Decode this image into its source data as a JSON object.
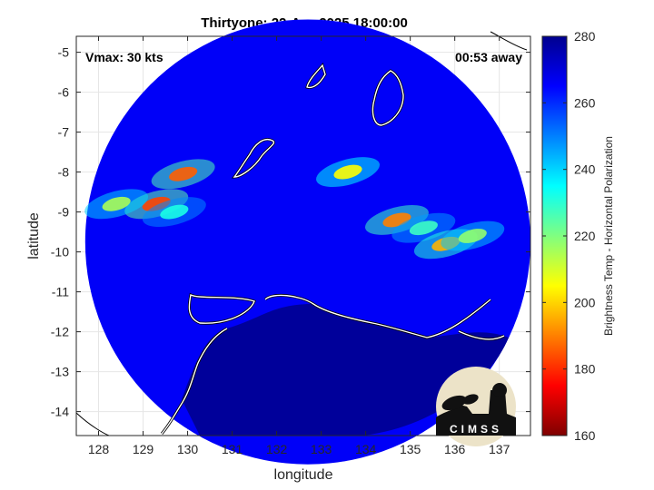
{
  "chart_data": {
    "type": "heatmap",
    "title": "Thirtyone: 22-Apr-2025 18:00:00",
    "xlabel": "longitude",
    "ylabel": "latitude",
    "xlim": [
      127.5,
      137.7
    ],
    "ylim": [
      -14.6,
      -4.6
    ],
    "x_ticks": [
      128,
      129,
      130,
      131,
      132,
      133,
      134,
      135,
      136,
      137
    ],
    "y_ticks": [
      -5,
      -6,
      -7,
      -8,
      -9,
      -10,
      -11,
      -12,
      -13,
      -14
    ],
    "grid": true,
    "annotations": {
      "left": "Vmax: 30 kts",
      "right": "00:53 away"
    },
    "colorbar": {
      "label": "Brightness Temp - Horizontal Polarization",
      "range": [
        160,
        280
      ],
      "ticks": [
        280,
        260,
        240,
        220,
        200,
        180,
        160
      ],
      "colormap": [
        "#7f0000",
        "#ff0000",
        "#ff8000",
        "#ffff00",
        "#80ff80",
        "#00ffff",
        "#0080ff",
        "#0000ff",
        "#00008f"
      ]
    },
    "swath": {
      "center": [
        132.7,
        -9.75
      ],
      "radius_deg": 5.0,
      "background_value": 266,
      "land_value": 280
    },
    "features": [
      {
        "lon": 129.3,
        "lat": -8.8,
        "value": 183
      },
      {
        "lon": 128.4,
        "lat": -8.8,
        "value": 215
      },
      {
        "lon": 129.7,
        "lat": -9.0,
        "value": 232
      },
      {
        "lon": 129.9,
        "lat": -8.05,
        "value": 186
      },
      {
        "lon": 133.6,
        "lat": -8.0,
        "value": 205
      },
      {
        "lon": 134.7,
        "lat": -9.2,
        "value": 190
      },
      {
        "lon": 135.3,
        "lat": -9.4,
        "value": 228
      },
      {
        "lon": 135.8,
        "lat": -9.8,
        "value": 196
      },
      {
        "lon": 136.4,
        "lat": -9.6,
        "value": 218
      }
    ]
  },
  "logo": {
    "text": "CIMSS"
  }
}
